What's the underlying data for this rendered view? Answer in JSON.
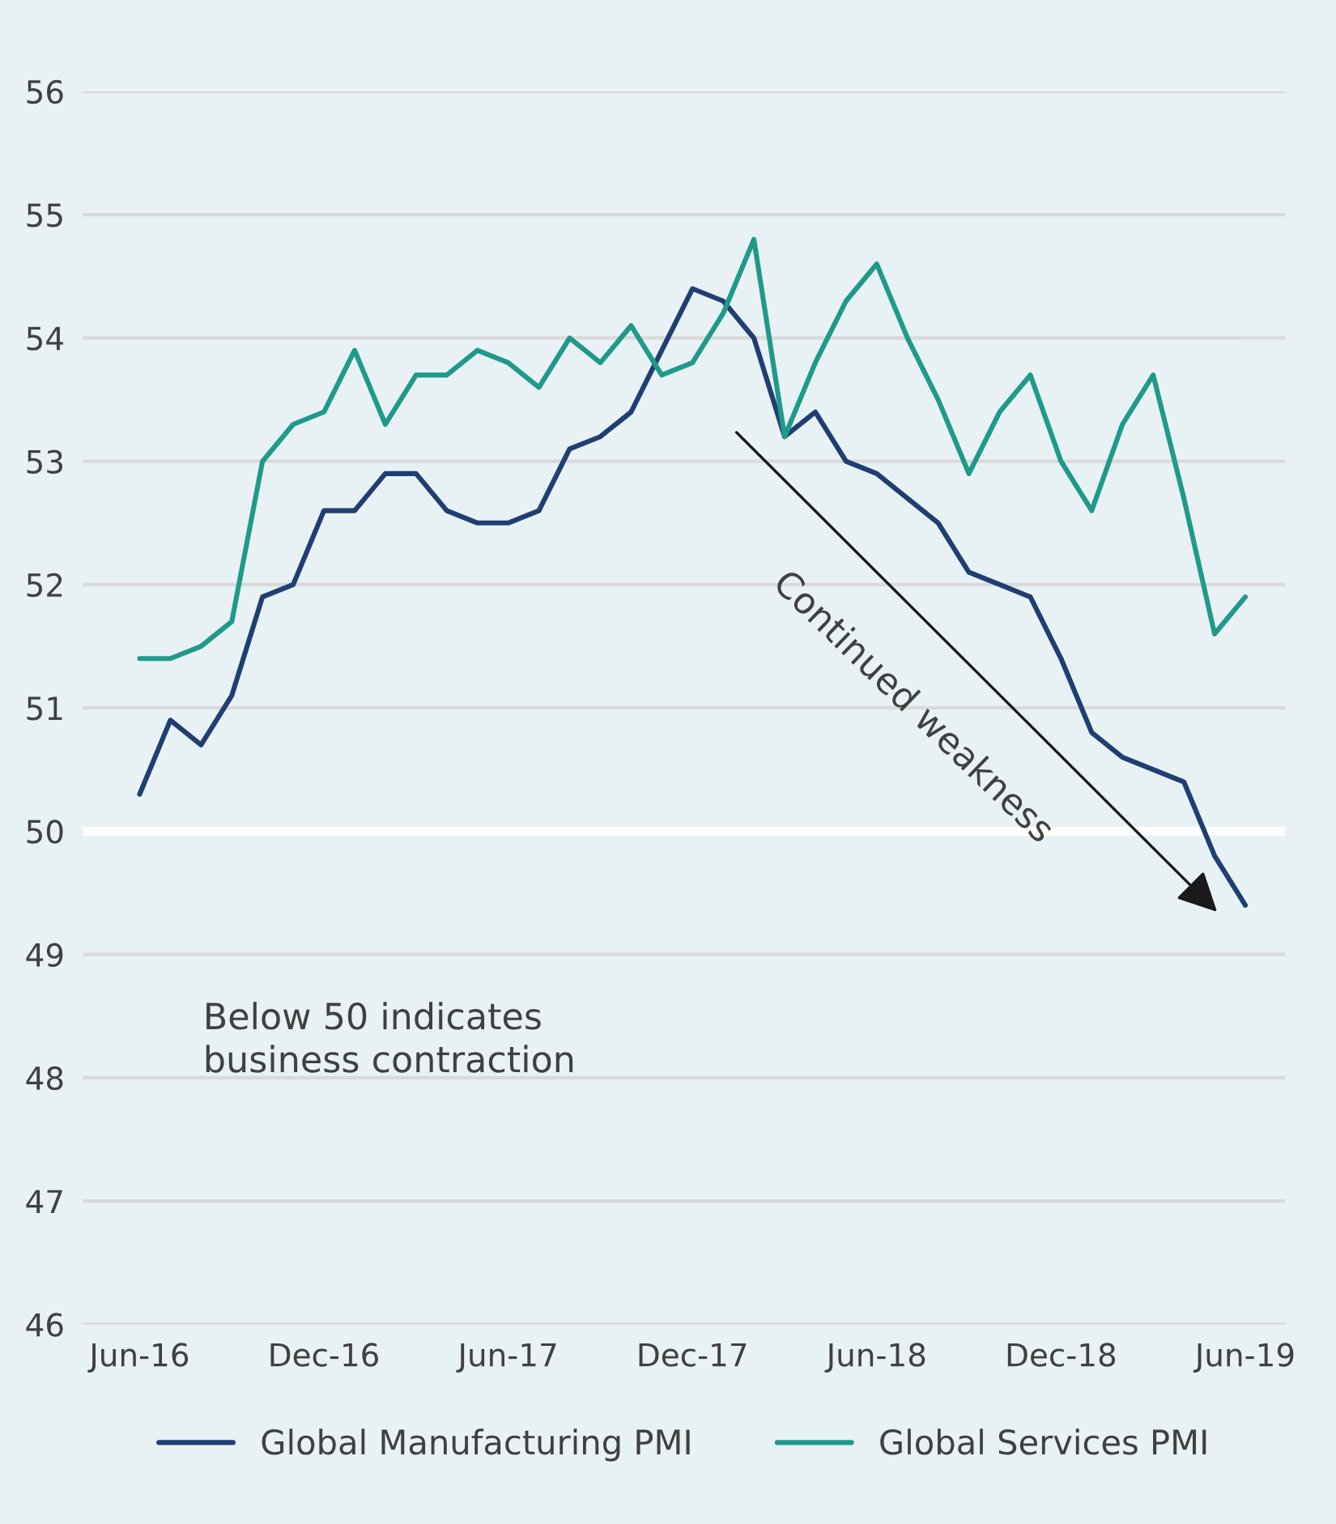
{
  "chart_data": {
    "type": "line",
    "categories": [
      "Jun-16",
      null,
      null,
      null,
      null,
      null,
      "Dec-16",
      null,
      null,
      null,
      null,
      null,
      "Jun-17",
      null,
      null,
      null,
      null,
      null,
      "Dec-17",
      null,
      null,
      null,
      null,
      null,
      "Jun-18",
      null,
      null,
      null,
      null,
      null,
      "Dec-18",
      null,
      null,
      null,
      null,
      null,
      "Jun-19"
    ],
    "series": [
      {
        "name": "Global Manufacturing PMI",
        "color": "#1f3f73",
        "values": [
          50.3,
          50.9,
          50.7,
          51.1,
          51.9,
          52.0,
          52.6,
          52.6,
          52.9,
          52.9,
          52.6,
          52.5,
          52.5,
          52.6,
          53.1,
          53.2,
          53.4,
          53.9,
          54.4,
          54.3,
          54.0,
          53.2,
          53.4,
          53.0,
          52.9,
          52.7,
          52.5,
          52.1,
          52.0,
          51.9,
          51.4,
          50.8,
          50.6,
          50.5,
          50.4,
          49.8,
          49.4
        ]
      },
      {
        "name": "Global Services PMI",
        "color": "#1f9a8a",
        "values": [
          51.4,
          51.4,
          51.5,
          51.7,
          53.0,
          53.3,
          53.4,
          53.9,
          53.3,
          53.7,
          53.7,
          53.9,
          53.8,
          53.6,
          54.0,
          53.8,
          54.1,
          53.7,
          53.8,
          54.2,
          54.8,
          53.2,
          53.8,
          54.3,
          54.6,
          54.0,
          53.5,
          52.9,
          53.4,
          53.7,
          53.0,
          52.6,
          53.3,
          53.7,
          52.7,
          51.6,
          51.9
        ]
      }
    ],
    "ylim": [
      46,
      56
    ],
    "yticks": [
      46,
      47,
      48,
      49,
      50,
      51,
      52,
      53,
      54,
      55,
      56
    ],
    "grid": "y",
    "legend": "bottom",
    "marker": "none",
    "line_style": "solid",
    "ref_lines": [
      {
        "axis": "y",
        "value": 50,
        "color": "#ffffff"
      }
    ],
    "annotations": [
      "Below 50 indicates\nbusiness contraction",
      "Continued weakness"
    ]
  }
}
